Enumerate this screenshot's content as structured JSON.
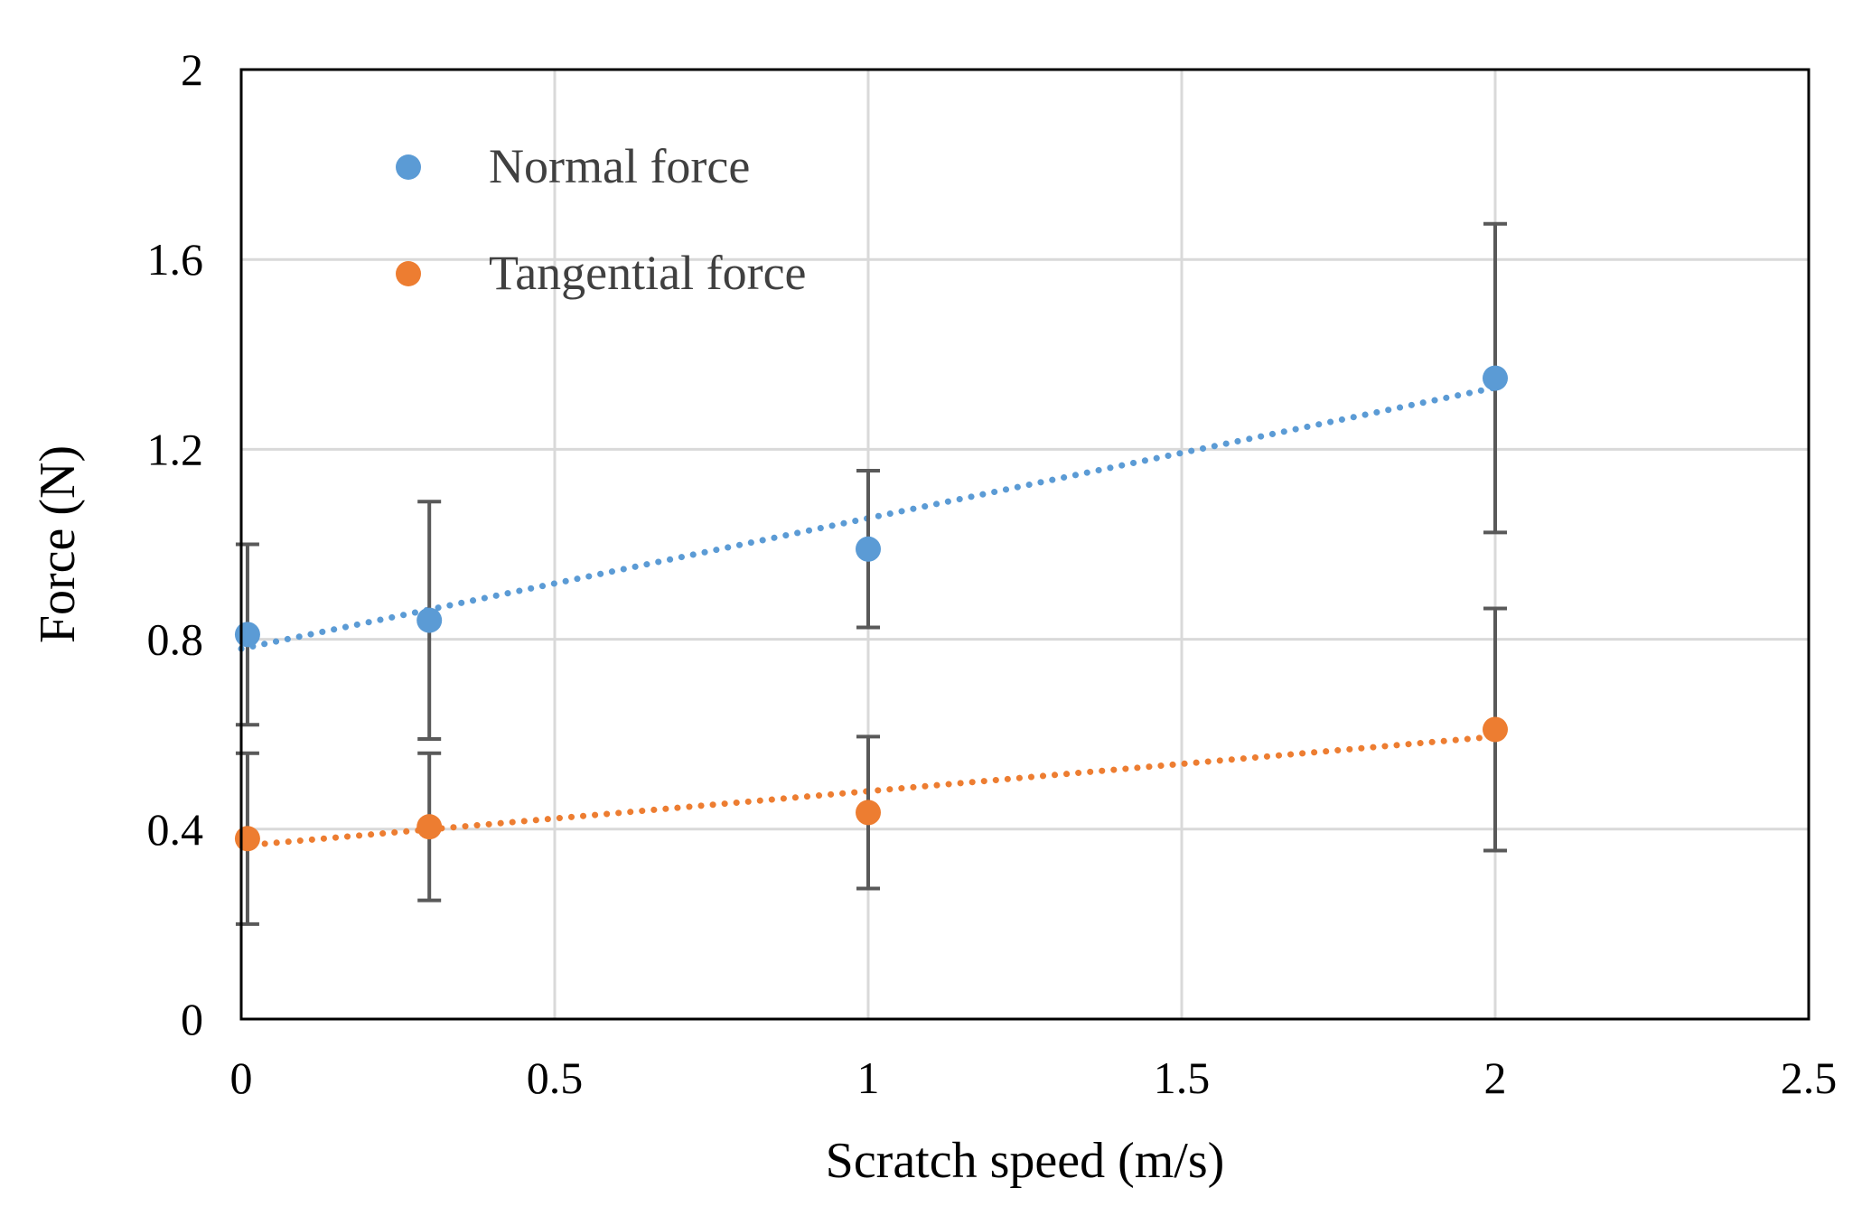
{
  "chart_data": {
    "type": "scatter",
    "title": "",
    "xlabel": "Scratch speed (m/s)",
    "ylabel": "Force (N)",
    "xlim": [
      0,
      2.5
    ],
    "ylim": [
      0,
      2
    ],
    "x_ticks": [
      0,
      0.5,
      1,
      1.5,
      2,
      2.5
    ],
    "x_tick_labels": [
      "0",
      "0.5",
      "1",
      "1.5",
      "2",
      "2.5"
    ],
    "y_ticks": [
      0,
      0.4,
      0.8,
      1.2,
      1.6,
      2
    ],
    "y_tick_labels": [
      "0",
      "0.4",
      "0.8",
      "1.2",
      "1.6",
      "2"
    ],
    "grid": true,
    "legend_position": "top-left",
    "series": [
      {
        "name": "Normal force",
        "color": "#5B9BD5",
        "x": [
          0.01,
          0.3,
          1,
          2
        ],
        "y": [
          0.81,
          0.84,
          0.99,
          1.35
        ],
        "error": [
          0.19,
          0.25,
          0.165,
          0.325
        ],
        "trendline": {
          "type": "linear",
          "style": "dotted",
          "from": [
            0,
            0.78
          ],
          "to": [
            2,
            1.33
          ]
        }
      },
      {
        "name": "Tangential force",
        "color": "#ED7D31",
        "x": [
          0.01,
          0.3,
          1,
          2
        ],
        "y": [
          0.38,
          0.405,
          0.435,
          0.61
        ],
        "error": [
          0.18,
          0.155,
          0.16,
          0.255
        ],
        "trendline": {
          "type": "linear",
          "style": "dotted",
          "from": [
            0,
            0.365
          ],
          "to": [
            2,
            0.595
          ]
        }
      }
    ]
  }
}
